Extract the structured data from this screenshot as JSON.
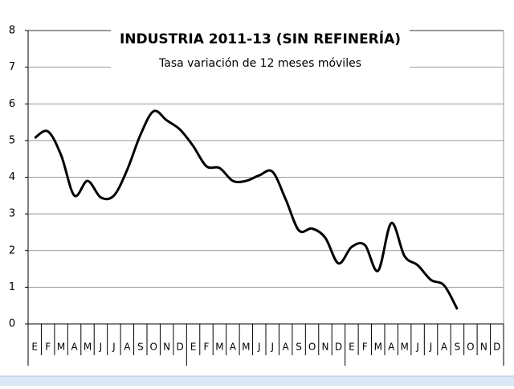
{
  "chart_data": {
    "type": "line",
    "title": "INDUSTRIA 2011-13 (SIN REFINERÍA)",
    "subtitle": "Tasa variación de 12 meses móviles",
    "categories": [
      "E",
      "F",
      "M",
      "A",
      "M",
      "J",
      "J",
      "A",
      "S",
      "O",
      "N",
      "D",
      "E",
      "F",
      "M",
      "A",
      "M",
      "J",
      "J",
      "A",
      "S",
      "O",
      "N",
      "D",
      "E",
      "F",
      "M",
      "A",
      "M",
      "J",
      "J",
      "A",
      "S",
      "O",
      "N",
      "D"
    ],
    "values": [
      5.07,
      5.25,
      4.6,
      3.5,
      3.9,
      3.45,
      3.5,
      4.2,
      5.15,
      5.8,
      5.55,
      5.3,
      4.85,
      4.3,
      4.25,
      3.9,
      3.9,
      4.05,
      4.15,
      3.4,
      2.55,
      2.6,
      2.35,
      1.65,
      2.1,
      2.15,
      1.45,
      2.75,
      1.85,
      1.6,
      1.2,
      1.05,
      0.4,
      null,
      null,
      null
    ],
    "color": "#000000",
    "ylim": [
      0,
      8
    ],
    "yticks": [
      0,
      1,
      2,
      3,
      4,
      5,
      6,
      7,
      8
    ],
    "grid": true
  }
}
